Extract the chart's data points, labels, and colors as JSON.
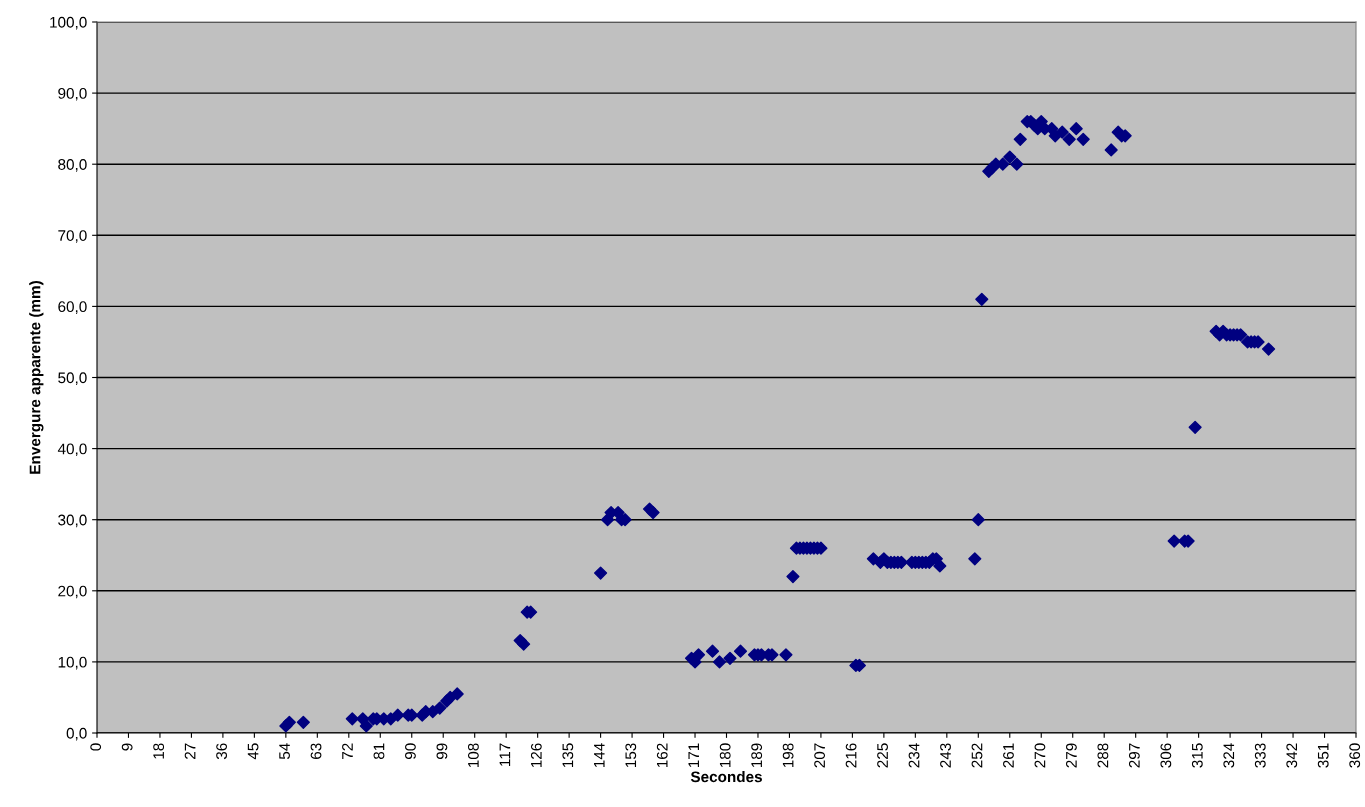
{
  "chart_data": {
    "type": "scatter",
    "xlabel": "Secondes",
    "ylabel": "Envergure apparente (mm)",
    "x": [
      54,
      55,
      59,
      73,
      76,
      77,
      79,
      80,
      82,
      84,
      86,
      89,
      90,
      93,
      94,
      96,
      98,
      100,
      101,
      103,
      121,
      122,
      123,
      124,
      144,
      146,
      147,
      149,
      150,
      151,
      158,
      159,
      170,
      171,
      172,
      176,
      178,
      181,
      184,
      188,
      189,
      190,
      192,
      193,
      197,
      199,
      200,
      201,
      202,
      203,
      204,
      205,
      206,
      207,
      217,
      218,
      222,
      224,
      225,
      226,
      227,
      228,
      229,
      230,
      233,
      234,
      235,
      236,
      237,
      238,
      239,
      240,
      241,
      251,
      252,
      253,
      255,
      256,
      257,
      259,
      261,
      263,
      264,
      266,
      267,
      268,
      269,
      270,
      271,
      273,
      274,
      276,
      278,
      280,
      282,
      290,
      292,
      293,
      294,
      308,
      311,
      312,
      314,
      320,
      321,
      322,
      323,
      324,
      325,
      326,
      327,
      329,
      330,
      331,
      332,
      335
    ],
    "series": [
      {
        "color": "#000080",
        "values": [
          1,
          1.5,
          1.5,
          2,
          2,
          1,
          2,
          2,
          2,
          2,
          2.5,
          2.5,
          2.5,
          2.5,
          3,
          3,
          3.5,
          4.5,
          5,
          5.5,
          13,
          12.5,
          17,
          17,
          22.5,
          30,
          31,
          31,
          30,
          30,
          31.5,
          31,
          10.5,
          10,
          11,
          11.5,
          10,
          10.5,
          11.5,
          11,
          11,
          11,
          11,
          11,
          11,
          22,
          26,
          26,
          26,
          26,
          26,
          26,
          26,
          26,
          9.5,
          9.5,
          24.5,
          24,
          24.5,
          24,
          24,
          24,
          24,
          24,
          24,
          24,
          24,
          24,
          24,
          24,
          24.5,
          24.5,
          23.5,
          24.5,
          30,
          61,
          79,
          79.5,
          80,
          80,
          81,
          80,
          83.5,
          86,
          86,
          85.5,
          85,
          86,
          85,
          85,
          84,
          84.5,
          83.5,
          85,
          83.5,
          82,
          84.5,
          84,
          84,
          27,
          27,
          27,
          43,
          56.5,
          56,
          56.5,
          56,
          56,
          56,
          56,
          56,
          55,
          55,
          55,
          55,
          54
        ]
      }
    ],
    "xlim": [
      0,
      360
    ],
    "xticks": [
      0,
      9,
      18,
      27,
      36,
      45,
      54,
      63,
      72,
      81,
      90,
      99,
      108,
      117,
      126,
      135,
      144,
      153,
      162,
      171,
      180,
      189,
      198,
      207,
      216,
      225,
      234,
      243,
      252,
      261,
      270,
      279,
      288,
      297,
      306,
      315,
      324,
      333,
      342,
      351,
      360
    ],
    "ylim": [
      0,
      100
    ],
    "yticks": [
      {
        "value": 0,
        "label": "0,0"
      },
      {
        "value": 10,
        "label": "10,0"
      },
      {
        "value": 20,
        "label": "20,0"
      },
      {
        "value": 30,
        "label": "30,0"
      },
      {
        "value": 40,
        "label": "40,0"
      },
      {
        "value": 50,
        "label": "50,0"
      },
      {
        "value": 60,
        "label": "60,0"
      },
      {
        "value": 70,
        "label": "70,0"
      },
      {
        "value": 80,
        "label": "80,0"
      },
      {
        "value": 90,
        "label": "90,0"
      },
      {
        "value": 100,
        "label": "100,0"
      }
    ],
    "grid": "y",
    "marker": "diamond"
  }
}
